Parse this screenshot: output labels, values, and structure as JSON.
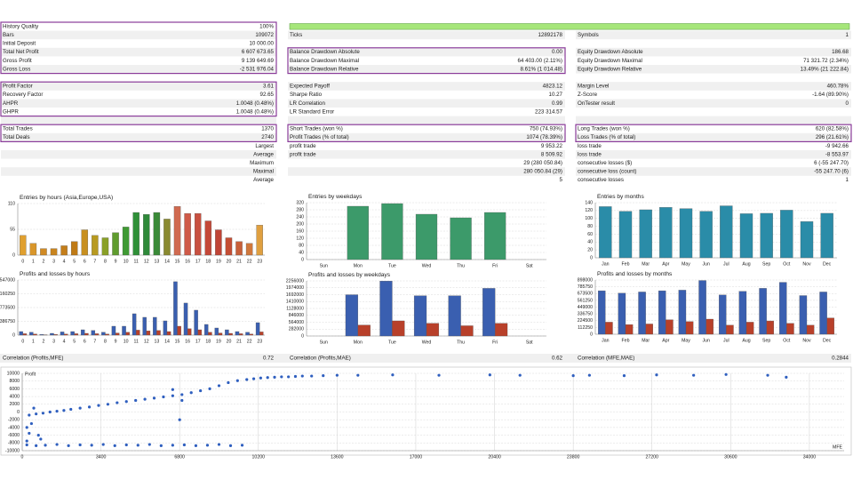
{
  "stats": {
    "rows": [
      [
        {
          "label": "History Quality",
          "value": "100%"
        },
        null,
        null
      ],
      [
        {
          "label": "Bars",
          "value": "109072"
        },
        {
          "label": "Ticks",
          "value": "12892178"
        },
        {
          "label": "Symbols",
          "value": "1"
        }
      ],
      [
        {
          "label": "Initial Deposit",
          "value": "10 000.00"
        },
        null,
        null
      ],
      [
        {
          "label": "Total Net Profit",
          "value": "6 607 673.65"
        },
        {
          "label": "Balance Drawdown Absolute",
          "value": "0.00"
        },
        {
          "label": "Equity Drawdown Absolute",
          "value": "186.68"
        }
      ],
      [
        {
          "label": "Gross Profit",
          "value": "9 139 649.69"
        },
        {
          "label": "Balance Drawdown Maximal",
          "value": "64 403.00 (2.11%)"
        },
        {
          "label": "Equity Drawdown Maximal",
          "value": "71 321.72 (2.34%)"
        }
      ],
      [
        {
          "label": "Gross Loss",
          "value": "-2 531 976.04"
        },
        {
          "label": "Balance Drawdown Relative",
          "value": "8.61% (1 014.48)"
        },
        {
          "label": "Equity Drawdown Relative",
          "value": "13.49% (21 222.84)"
        }
      ],
      [
        null,
        null,
        null
      ],
      [
        {
          "label": "Profit Factor",
          "value": "3.61"
        },
        {
          "label": "Expected Payoff",
          "value": "4823.12"
        },
        {
          "label": "Margin Level",
          "value": "460.78%"
        }
      ],
      [
        {
          "label": "Recovery Factor",
          "value": "92.65"
        },
        {
          "label": "Sharpe Ratio",
          "value": "10.27"
        },
        {
          "label": "Z-Score",
          "value": "-1.64 (89.90%)"
        }
      ],
      [
        {
          "label": "AHPR",
          "value": "1.0048 (0.48%)"
        },
        {
          "label": "LR Correlation",
          "value": "0.99"
        },
        {
          "label": "OnTester result",
          "value": "0"
        }
      ],
      [
        {
          "label": "GHPR",
          "value": "1.0048 (0.48%)"
        },
        {
          "label": "LR Standard Error",
          "value": "223 314.57"
        },
        null
      ],
      [
        null,
        null,
        null
      ],
      [
        {
          "label": "Total Trades",
          "value": "1370"
        },
        {
          "label": "Short Trades (won %)",
          "value": "750 (74.93%)"
        },
        {
          "label": "Long Trades (won %)",
          "value": "620 (82.58%)"
        }
      ],
      [
        {
          "label": "Total Deals",
          "value": "2740"
        },
        {
          "label": "Profit Trades (% of total)",
          "value": "1074 (78.39%)"
        },
        {
          "label": "Loss Trades (% of total)",
          "value": "296 (21.61%)"
        }
      ],
      [
        {
          "label": "Largest"
        },
        {
          "label": "profit trade",
          "value": "9 953.22"
        },
        {
          "label": "loss trade",
          "value": "-9 942.66"
        }
      ],
      [
        {
          "label": "Average"
        },
        {
          "label": "profit trade",
          "value": "8 509.92"
        },
        {
          "label": "loss trade",
          "value": "-8 553.97"
        }
      ],
      [
        {
          "label": "Maximum"
        },
        {
          "value": "29 (280 050.84)"
        },
        {
          "label": "consecutive losses ($)",
          "value": "6 (-55 247.70)"
        }
      ],
      [
        {
          "label": "Maximal"
        },
        {
          "value": "280 050.84 (29)"
        },
        {
          "label": "consecutive loss (count)",
          "value": "-55 247.70 (6)"
        }
      ],
      [
        {
          "label": "Average"
        },
        {
          "value": "5"
        },
        {
          "label": "consecutive losses",
          "value": "1"
        }
      ]
    ]
  },
  "charts": [
    {
      "type": "bar",
      "title": "Entries by hours (Asia,Europe,USA)",
      "categories": [
        "0",
        "1",
        "2",
        "3",
        "4",
        "5",
        "6",
        "7",
        "8",
        "9",
        "10",
        "11",
        "12",
        "13",
        "14",
        "15",
        "16",
        "17",
        "18",
        "19",
        "20",
        "21",
        "22",
        "23"
      ],
      "series": [
        {
          "values": [
            42,
            25,
            14,
            14,
            20,
            29,
            54,
            42,
            37,
            48,
            60,
            91,
            87,
            91,
            77,
            104,
            89,
            89,
            73,
            54,
            37,
            29,
            25,
            64
          ]
        }
      ],
      "colors": [
        "#e0a030",
        "#d9962a",
        "#d08a24",
        "#c8841e",
        "#c47e1a",
        "#bf7a16",
        "#c89020",
        "#b89a20",
        "#8aa028",
        "#5f9c2e",
        "#3f9a34",
        "#2f9038",
        "#2f8a3a",
        "#3a8a38",
        "#8a8a30",
        "#d06a50",
        "#cf5a48",
        "#c85040",
        "#c44838",
        "#c04436",
        "#c44e34",
        "#c8603a",
        "#d0783c",
        "#e0a040"
      ],
      "ylim": [
        0,
        110
      ],
      "yticks": [
        0,
        55,
        110
      ],
      "grid": true
    },
    {
      "type": "bar",
      "title": "Entries by weekdays",
      "categories": [
        "Sun",
        "Mon",
        "Tue",
        "Wed",
        "Thu",
        "Fri",
        "Sat"
      ],
      "series": [
        {
          "color": "#3c9a6a",
          "values": [
            0,
            300,
            315,
            255,
            235,
            265,
            0
          ]
        }
      ],
      "ylim": [
        0,
        320
      ],
      "yticks": [
        0,
        40,
        80,
        120,
        160,
        200,
        240,
        280,
        320
      ],
      "grid": true
    },
    {
      "type": "bar",
      "title": "Entries by months",
      "categories": [
        "Jan",
        "Feb",
        "Mar",
        "Apr",
        "May",
        "Jun",
        "Jul",
        "Aug",
        "Sep",
        "Oct",
        "Nov",
        "Dec"
      ],
      "series": [
        {
          "color": "#2a8ca8",
          "values": [
            130,
            118,
            122,
            128,
            125,
            118,
            132,
            112,
            113,
            121,
            92,
            113
          ]
        }
      ],
      "ylim": [
        0,
        140
      ],
      "yticks": [
        0,
        20,
        40,
        60,
        80,
        100,
        120,
        140
      ],
      "grid": true
    },
    {
      "type": "bar",
      "title": "Profits and losses by hours",
      "categories": [
        "0",
        "1",
        "2",
        "3",
        "4",
        "5",
        "6",
        "7",
        "8",
        "9",
        "10",
        "11",
        "12",
        "13",
        "14",
        "15",
        "16",
        "17",
        "18",
        "19",
        "20",
        "21",
        "22",
        "23"
      ],
      "series": [
        {
          "color": "#3a5fb0",
          "values": [
            100000,
            80000,
            20000,
            50000,
            90000,
            100000,
            150000,
            130000,
            80000,
            250000,
            250000,
            600000,
            500000,
            500000,
            400000,
            1500000,
            900000,
            700000,
            300000,
            200000,
            150000,
            100000,
            80000,
            350000
          ]
        },
        {
          "color": "#b8402a",
          "values": [
            40000,
            30000,
            10000,
            20000,
            30000,
            40000,
            50000,
            40000,
            30000,
            60000,
            80000,
            140000,
            120000,
            130000,
            100000,
            250000,
            180000,
            150000,
            80000,
            60000,
            50000,
            40000,
            30000,
            90000
          ]
        }
      ],
      "ylim": [
        0,
        1547000
      ],
      "yticks": [
        0,
        386750,
        773500,
        1160250,
        1547000
      ],
      "grid": true
    },
    {
      "type": "bar",
      "title": "Profits and losses by weekdays",
      "categories": [
        "Sun",
        "Mon",
        "Tue",
        "Wed",
        "Thu",
        "Fri",
        "Sat"
      ],
      "series": [
        {
          "color": "#3a5fb0",
          "values": [
            0,
            1690000,
            2250000,
            1650000,
            1650000,
            1950000,
            0
          ]
        },
        {
          "color": "#b8402a",
          "values": [
            0,
            450000,
            620000,
            520000,
            420000,
            520000,
            0
          ]
        }
      ],
      "ylim": [
        0,
        2256000
      ],
      "yticks": [
        0,
        282000,
        564000,
        846000,
        1128000,
        1410000,
        1692000,
        1974000,
        2256000
      ],
      "grid": true
    },
    {
      "type": "bar",
      "title": "Profits and losses by months",
      "categories": [
        "Jan",
        "Feb",
        "Mar",
        "Apr",
        "May",
        "Jun",
        "Jul",
        "Aug",
        "Sep",
        "Oct",
        "Nov",
        "Dec"
      ],
      "series": [
        {
          "color": "#3a5fb0",
          "values": [
            720000,
            680000,
            700000,
            720000,
            730000,
            890000,
            650000,
            710000,
            760000,
            860000,
            640000,
            700000
          ]
        },
        {
          "color": "#b8402a",
          "values": [
            200000,
            160000,
            170000,
            240000,
            210000,
            250000,
            150000,
            200000,
            220000,
            180000,
            150000,
            270000
          ]
        }
      ],
      "ylim": [
        0,
        898000
      ],
      "yticks": [
        0,
        112250,
        224500,
        336750,
        449000,
        561250,
        673500,
        785750,
        898000
      ],
      "grid": true
    }
  ],
  "correlations": [
    {
      "label": "Correlation (Profits,MFE)",
      "value": "0.72"
    },
    {
      "label": "Correlation (Profits,MAE)",
      "value": "0.62"
    },
    {
      "label": "Correlation (MFE,MAE)",
      "value": "0.2844"
    }
  ],
  "scatter": {
    "type": "scatter",
    "ylabel": "Profit",
    "xlabel": "MFE",
    "color": "#2f5fbf",
    "grid": true,
    "x": [
      300,
      600,
      900,
      1200,
      1500,
      1800,
      2100,
      2500,
      2900,
      3300,
      3700,
      4100,
      4500,
      4900,
      5300,
      5700,
      6100,
      6500,
      6900,
      7300,
      7700,
      8100,
      8500,
      8900,
      9300,
      9700,
      10000,
      10300,
      10600,
      10900,
      11200,
      11500,
      11800,
      12100,
      12500,
      13000,
      13600,
      14500,
      16000,
      18000,
      20200,
      21500,
      23800,
      24500,
      26000,
      27400,
      29000,
      30400,
      32200,
      33000,
      200,
      600,
      1000,
      1500,
      2000,
      2500,
      3000,
      3500,
      4000,
      4500,
      5000,
      5500,
      6000,
      6500,
      7000,
      7500,
      8000,
      8500,
      9000,
      9500,
      200,
      400,
      300,
      700,
      500,
      6800,
      6900,
      200,
      800,
      6500
    ],
    "y": [
      -800,
      -500,
      -300,
      0,
      200,
      400,
      700,
      1000,
      1300,
      1700,
      2000,
      2400,
      2700,
      3000,
      3300,
      3600,
      3900,
      4200,
      4500,
      5000,
      5500,
      6000,
      6800,
      7600,
      8100,
      8400,
      8600,
      8800,
      8900,
      9000,
      9100,
      9100,
      9200,
      9300,
      9300,
      9400,
      9500,
      9500,
      9600,
      9500,
      9600,
      9500,
      9400,
      9500,
      9400,
      9600,
      9500,
      9700,
      9500,
      9000,
      -8500,
      -8700,
      -8600,
      -8400,
      -8700,
      -8500,
      -8600,
      -8400,
      -8700,
      -8500,
      -8600,
      -8400,
      -8700,
      -8600,
      -8500,
      -8700,
      -8600,
      -8400,
      -8700,
      -8600,
      -4000,
      -3000,
      -5500,
      -6000,
      1000,
      -2000,
      3000,
      -7500,
      -7000,
      5800
    ],
    "xlim": [
      0,
      35500
    ],
    "ylim": [
      -10000,
      10000
    ],
    "xticks": [
      0,
      3400,
      6800,
      10200,
      13600,
      17000,
      20400,
      23800,
      27200,
      30600,
      34000
    ],
    "yticks": [
      -10000,
      -8000,
      -6000,
      -4000,
      -2000,
      0,
      2000,
      4000,
      6000,
      8000,
      10000
    ]
  }
}
